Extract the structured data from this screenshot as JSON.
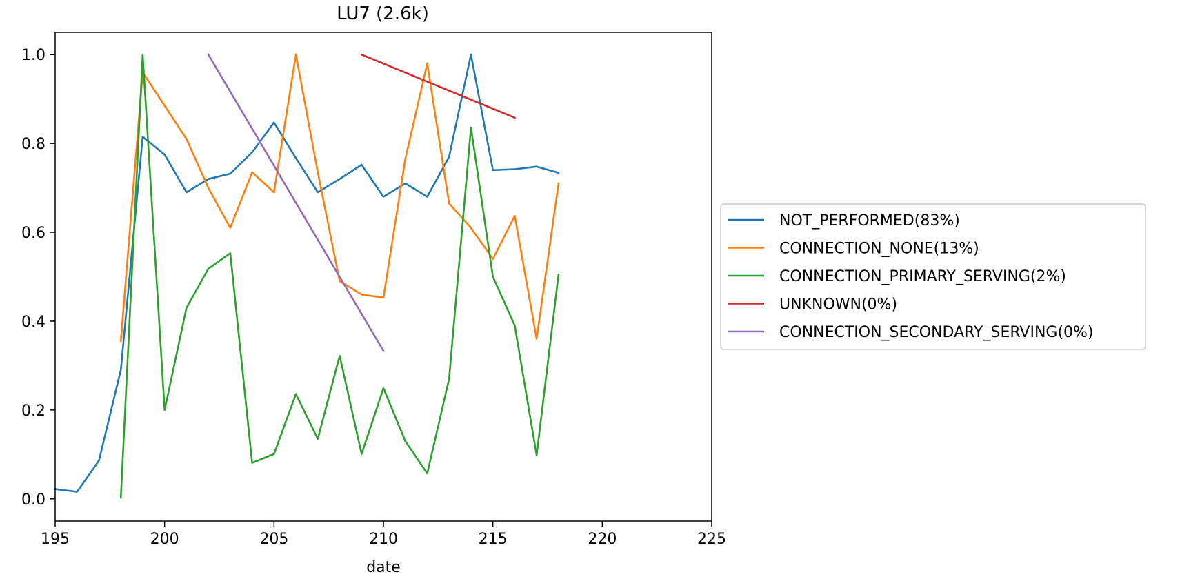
{
  "chart_data": {
    "type": "line",
    "title": "LU7 (2.6k)",
    "xlabel": "date",
    "ylabel": "",
    "xlim": [
      195,
      225
    ],
    "ylim": [
      -0.05,
      1.05
    ],
    "xticks": [
      "195",
      "200",
      "205",
      "210",
      "215",
      "220",
      "225"
    ],
    "yticks": [
      "0.0",
      "0.2",
      "0.4",
      "0.6",
      "0.8",
      "1.0"
    ],
    "grid": false,
    "legend_position": "outside-right",
    "series": [
      {
        "name": "NOT_PERFORMED(83%)",
        "color": "#1f77b4",
        "x": [
          195,
          196,
          197,
          198,
          199,
          200,
          201,
          202,
          203,
          204,
          205,
          206,
          207,
          208,
          209,
          210,
          211,
          212,
          213,
          214,
          215,
          216,
          217,
          218
        ],
        "y": [
          0.022,
          0.016,
          0.086,
          0.29,
          0.815,
          0.775,
          0.69,
          0.72,
          0.732,
          0.78,
          0.847,
          0.767,
          0.69,
          0.72,
          0.752,
          0.68,
          0.71,
          0.68,
          0.77,
          1.0,
          0.74,
          0.742,
          0.748,
          0.734
        ]
      },
      {
        "name": "CONNECTION_NONE(13%)",
        "color": "#ff7f0e",
        "x": [
          198,
          199,
          200,
          201,
          202,
          203,
          204,
          205,
          206,
          207,
          208,
          209,
          210,
          211,
          212,
          213,
          214,
          215,
          216,
          217,
          218
        ],
        "y": [
          0.355,
          0.96,
          0.885,
          0.81,
          0.7,
          0.61,
          0.735,
          0.69,
          1.0,
          0.735,
          0.49,
          0.46,
          0.453,
          0.765,
          0.98,
          0.665,
          0.61,
          0.54,
          0.637,
          0.36,
          0.71
        ]
      },
      {
        "name": "CONNECTION_PRIMARY_SERVING(2%)",
        "color": "#2ca02c",
        "x": [
          198,
          199,
          200,
          201,
          202,
          203,
          204,
          205,
          206,
          207,
          208,
          209,
          210,
          211,
          212,
          213,
          214,
          215,
          216,
          217,
          218
        ],
        "y": [
          0.003,
          1.0,
          0.2,
          0.43,
          0.518,
          0.553,
          0.081,
          0.101,
          0.236,
          0.135,
          0.322,
          0.101,
          0.249,
          0.13,
          0.057,
          0.27,
          0.836,
          0.5,
          0.39,
          0.098,
          0.505
        ]
      },
      {
        "name": "UNKNOWN(0%)",
        "color": "#d62728",
        "x": [
          209,
          216
        ],
        "y": [
          1.0,
          0.858
        ]
      },
      {
        "name": "CONNECTION_SECONDARY_SERVING(0%)",
        "color": "#9467bd",
        "x": [
          202,
          210
        ],
        "y": [
          1.0,
          0.333
        ]
      }
    ]
  }
}
